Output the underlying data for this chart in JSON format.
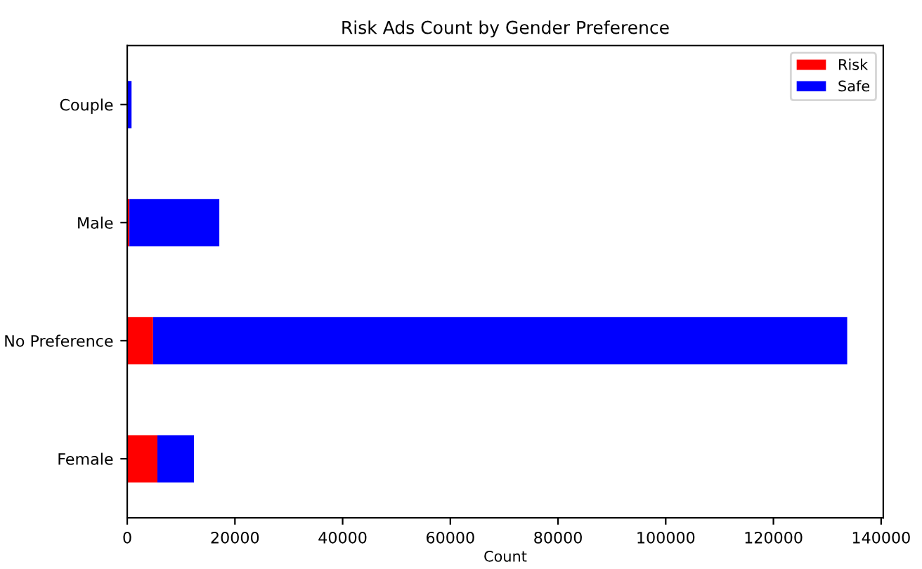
{
  "chart_data": {
    "type": "bar",
    "orientation": "horizontal",
    "stacked": true,
    "title": "Risk Ads Count by Gender Preference",
    "xlabel": "Count",
    "categories": [
      "Couple",
      "Male",
      "No Preference",
      "Female"
    ],
    "series": [
      {
        "name": "Risk",
        "color": "#ff0000",
        "values": [
          null,
          400,
          4800,
          5600
        ]
      },
      {
        "name": "Safe",
        "color": "#0000ff",
        "values": [
          800,
          16700,
          128900,
          6800
        ]
      }
    ],
    "xlim": [
      0,
      140400
    ],
    "xticks": [
      0,
      20000,
      40000,
      60000,
      80000,
      100000,
      120000,
      140000
    ],
    "grid": false,
    "legend": "top right"
  }
}
